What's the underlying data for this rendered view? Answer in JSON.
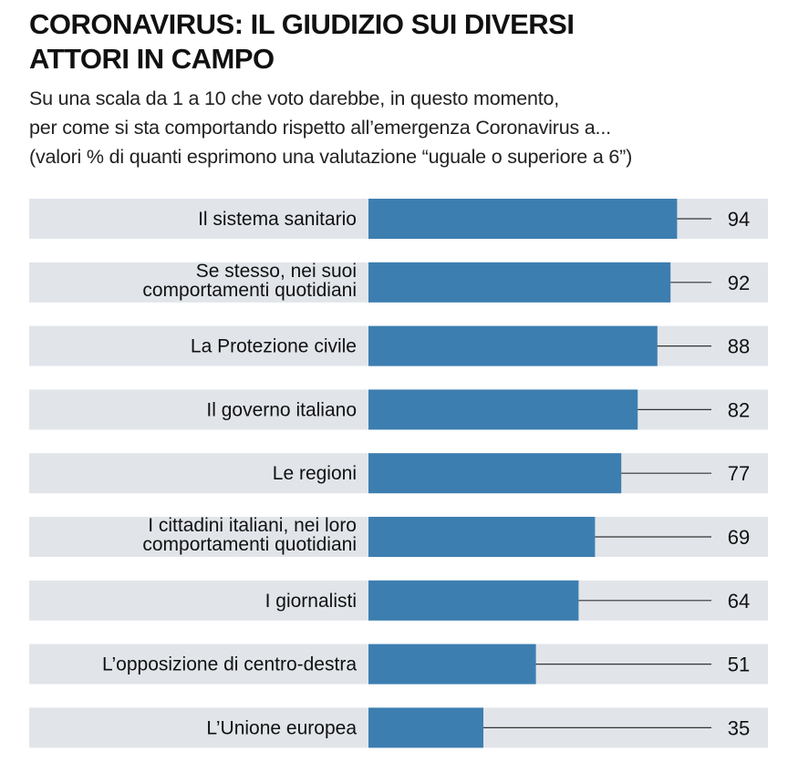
{
  "title_lines": [
    "CORONAVIRUS: IL GIUDIZIO SUI DIVERSI",
    "ATTORI IN CAMPO"
  ],
  "subtitle_lines": [
    "Su una scala da 1 a 10 che voto darebbe, in questo momento,",
    "per come si sta comportando rispetto all’emergenza Coronavirus a...",
    "(valori % di quanti esprimono una valutazione “uguale o superiore a 6”)"
  ],
  "colors": {
    "bar": "#3d7eb0",
    "track": "#e1e5ea",
    "leader": "#333333"
  },
  "chart_data": {
    "type": "bar",
    "orientation": "horizontal",
    "title": "CORONAVIRUS: IL GIUDIZIO SUI DIVERSI ATTORI IN CAMPO",
    "subtitle": "Su una scala da 1 a 10 che voto darebbe, in questo momento, per come si sta comportando rispetto all’emergenza Coronavirus a... (valori % di quanti esprimono una valutazione “uguale o superiore a 6”)",
    "xlabel": "",
    "ylabel": "",
    "xlim": [
      0,
      100
    ],
    "grid": false,
    "legend": "none",
    "unit": "%",
    "categories": [
      [
        "Il sistema sanitario"
      ],
      [
        "Se stesso, nei suoi",
        "comportamenti quotidiani"
      ],
      [
        "La Protezione civile"
      ],
      [
        "Il governo italiano"
      ],
      [
        "Le regioni"
      ],
      [
        "I cittadini italiani, nei loro",
        "comportamenti quotidiani"
      ],
      [
        "I giornalisti"
      ],
      [
        "L’opposizione di centro-destra"
      ],
      [
        "L’Unione europea"
      ]
    ],
    "values": [
      94,
      92,
      88,
      82,
      77,
      69,
      64,
      51,
      35
    ]
  }
}
